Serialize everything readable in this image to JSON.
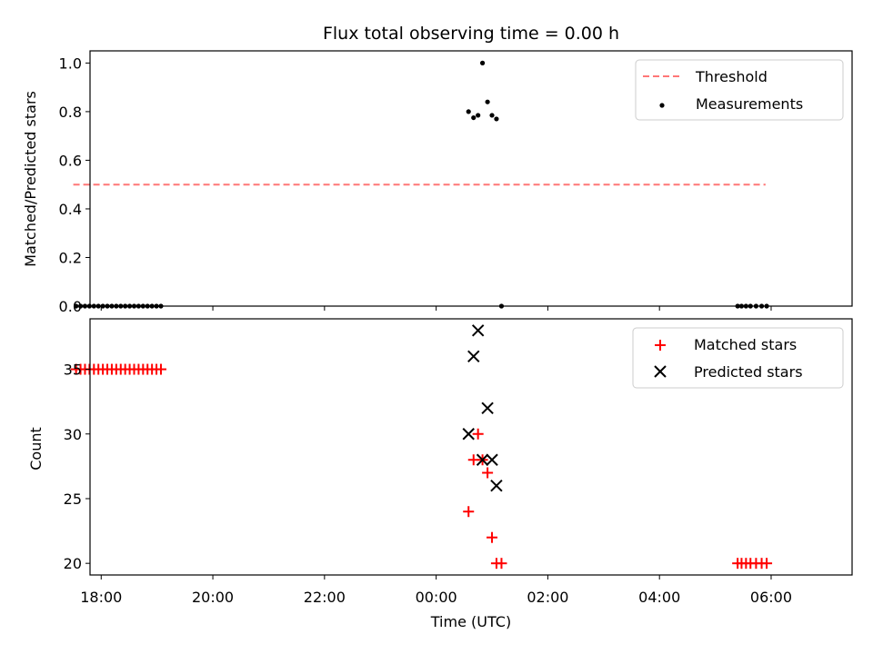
{
  "chart_data": [
    {
      "type": "scatter",
      "panel": "top",
      "title": "Flux total observing time = 0.00 h",
      "xlabel": "",
      "ylabel": "Matched/Predicted stars",
      "xlim": [
        -6.2,
        7.45
      ],
      "ylim": [
        0.0,
        1.05
      ],
      "yticks": [
        0.0,
        0.2,
        0.4,
        0.6,
        0.8,
        1.0
      ],
      "ytick_labels": [
        "0.0",
        "0.2",
        "0.4",
        "0.6",
        "0.8",
        "1.0"
      ],
      "legend_position": "top-right",
      "threshold": {
        "name": "Threshold",
        "y": 0.5,
        "x_start": -6.5,
        "x_end": 5.9,
        "color": "#ff7777"
      },
      "series": [
        {
          "name": "Measurements",
          "color": "#000000",
          "marker": "dot",
          "points": [
            [
              -6.45,
              0.0
            ],
            [
              -6.37,
              0.0
            ],
            [
              -6.29,
              0.0
            ],
            [
              -6.21,
              0.0
            ],
            [
              -6.13,
              0.0
            ],
            [
              -6.05,
              0.0
            ],
            [
              -5.97,
              0.0
            ],
            [
              -5.89,
              0.0
            ],
            [
              -5.81,
              0.0
            ],
            [
              -5.73,
              0.0
            ],
            [
              -5.65,
              0.0
            ],
            [
              -5.57,
              0.0
            ],
            [
              -5.49,
              0.0
            ],
            [
              -5.41,
              0.0
            ],
            [
              -5.33,
              0.0
            ],
            [
              -5.25,
              0.0
            ],
            [
              -5.17,
              0.0
            ],
            [
              -5.09,
              0.0
            ],
            [
              -5.01,
              0.0
            ],
            [
              -4.93,
              0.0
            ],
            [
              0.58,
              0.8
            ],
            [
              0.67,
              0.775
            ],
            [
              0.75,
              0.785
            ],
            [
              0.83,
              1.0
            ],
            [
              0.92,
              0.84
            ],
            [
              1.0,
              0.785
            ],
            [
              1.08,
              0.77
            ],
            [
              1.17,
              0.0
            ],
            [
              5.4,
              0.0
            ],
            [
              5.47,
              0.0
            ],
            [
              5.55,
              0.0
            ],
            [
              5.63,
              0.0
            ],
            [
              5.73,
              0.0
            ],
            [
              5.83,
              0.0
            ],
            [
              5.92,
              0.0
            ]
          ]
        }
      ]
    },
    {
      "type": "scatter",
      "panel": "bottom",
      "xlabel": "Time (UTC)",
      "ylabel": "Count",
      "xlim": [
        -6.2,
        7.45
      ],
      "ylim": [
        19.1,
        38.9
      ],
      "yticks": [
        20,
        25,
        30,
        35
      ],
      "ytick_labels": [
        "20",
        "25",
        "30",
        "35"
      ],
      "xticks": [
        -6,
        -4,
        -2,
        0,
        2,
        4,
        6
      ],
      "xtick_labels": [
        "18:00",
        "20:00",
        "22:00",
        "00:00",
        "02:00",
        "04:00",
        "06:00"
      ],
      "legend_position": "top-right",
      "series": [
        {
          "name": "Matched stars",
          "color": "#ff0000",
          "marker": "plus",
          "points": [
            [
              -6.45,
              35
            ],
            [
              -6.37,
              35
            ],
            [
              -6.29,
              35
            ],
            [
              -6.21,
              35
            ],
            [
              -6.13,
              35
            ],
            [
              -6.05,
              35
            ],
            [
              -5.97,
              35
            ],
            [
              -5.89,
              35
            ],
            [
              -5.81,
              35
            ],
            [
              -5.73,
              35
            ],
            [
              -5.65,
              35
            ],
            [
              -5.57,
              35
            ],
            [
              -5.49,
              35
            ],
            [
              -5.41,
              35
            ],
            [
              -5.33,
              35
            ],
            [
              -5.25,
              35
            ],
            [
              -5.17,
              35
            ],
            [
              -5.09,
              35
            ],
            [
              -5.01,
              35
            ],
            [
              -4.93,
              35
            ],
            [
              0.58,
              24
            ],
            [
              0.67,
              28
            ],
            [
              0.75,
              30
            ],
            [
              0.83,
              28
            ],
            [
              0.92,
              27
            ],
            [
              1.0,
              22
            ],
            [
              1.08,
              20
            ],
            [
              1.17,
              20
            ],
            [
              5.4,
              20
            ],
            [
              5.47,
              20
            ],
            [
              5.55,
              20
            ],
            [
              5.63,
              20
            ],
            [
              5.73,
              20
            ],
            [
              5.83,
              20
            ],
            [
              5.92,
              20
            ]
          ]
        },
        {
          "name": "Predicted stars",
          "color": "#000000",
          "marker": "x",
          "points": [
            [
              0.58,
              30
            ],
            [
              0.67,
              36
            ],
            [
              0.75,
              38
            ],
            [
              0.83,
              28
            ],
            [
              0.92,
              32
            ],
            [
              1.0,
              28
            ],
            [
              1.08,
              26
            ]
          ]
        }
      ]
    }
  ]
}
